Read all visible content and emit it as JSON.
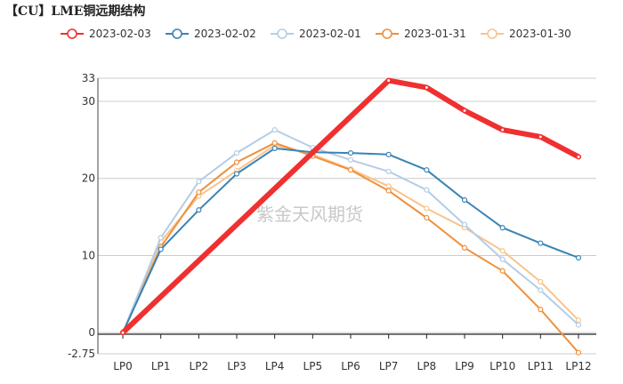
{
  "chart_data": {
    "type": "line",
    "title": "【CU】LME铜远期结构",
    "watermark": "紫金天风期货",
    "categories": [
      "LP0",
      "LP1",
      "LP2",
      "LP3",
      "LP4",
      "LP5",
      "LP6",
      "LP7",
      "LP8",
      "LP9",
      "LP10",
      "LP11",
      "LP12"
    ],
    "ylim": [
      -2.75,
      33
    ],
    "yticks": [
      -2.75,
      0,
      10,
      20,
      30,
      33
    ],
    "grid": true,
    "legend_position": "top",
    "series": [
      {
        "name": "2023-02-03",
        "color": "#f03030",
        "values": [
          0,
          null,
          null,
          null,
          null,
          null,
          null,
          32.7,
          31.8,
          28.8,
          26.3,
          25.4,
          22.8
        ]
      },
      {
        "name": "2023-02-02",
        "color": "#3a84b4",
        "values": [
          0,
          10.8,
          15.9,
          20.6,
          23.9,
          23.4,
          23.3,
          23.1,
          21.1,
          17.2,
          13.6,
          11.6,
          9.7
        ]
      },
      {
        "name": "2023-02-01",
        "color": "#b4cde6",
        "values": [
          0,
          12.3,
          19.6,
          23.3,
          26.3,
          24.0,
          22.4,
          20.9,
          18.5,
          14.0,
          9.5,
          5.5,
          1.0
        ]
      },
      {
        "name": "2023-01-31",
        "color": "#f0903c",
        "values": [
          0,
          11.1,
          18.2,
          22.1,
          24.6,
          22.9,
          21.1,
          18.4,
          14.9,
          11.0,
          8.0,
          3.0,
          -2.6
        ]
      },
      {
        "name": "2023-01-30",
        "color": "#f8c48e",
        "values": [
          0,
          11.8,
          17.7,
          21.0,
          24.3,
          23.1,
          21.2,
          19.0,
          16.1,
          13.6,
          10.6,
          6.6,
          1.6
        ]
      }
    ]
  }
}
